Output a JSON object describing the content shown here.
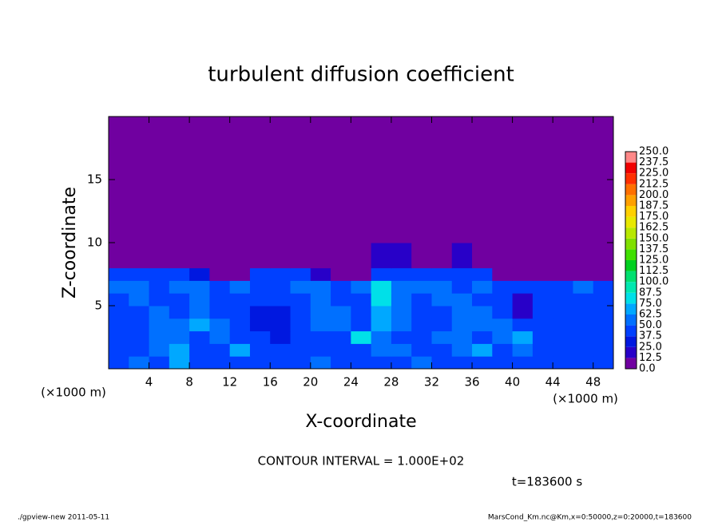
{
  "chart_data": {
    "type": "heatmap",
    "title": "turbulent diffusion coefficient",
    "xlabel": "X-coordinate",
    "ylabel": "Z-coordinate",
    "xlabel_unit": "(×1000 m)",
    "ylabel_unit": "(×1000 m)",
    "xlim": [
      0,
      50
    ],
    "ylim": [
      0,
      20
    ],
    "xticks": [
      4,
      8,
      12,
      16,
      20,
      24,
      28,
      32,
      36,
      40,
      44,
      48
    ],
    "yticks": [
      5,
      10,
      15
    ],
    "x": [
      0,
      2,
      4,
      6,
      8,
      10,
      12,
      14,
      16,
      18,
      20,
      22,
      24,
      26,
      28,
      30,
      32,
      34,
      36,
      38,
      40,
      42,
      44,
      46,
      48,
      50
    ],
    "y": [
      0,
      1,
      2,
      3,
      4,
      5,
      6,
      7,
      8,
      10,
      20
    ],
    "z": [
      [
        45,
        50,
        45,
        70,
        45,
        40,
        45,
        40,
        40,
        40,
        50,
        45,
        40,
        45,
        45,
        50,
        45,
        40,
        45,
        45,
        45,
        40,
        45,
        40,
        45
      ],
      [
        40,
        45,
        50,
        65,
        40,
        40,
        70,
        45,
        40,
        40,
        45,
        45,
        45,
        50,
        50,
        45,
        45,
        50,
        70,
        45,
        55,
        45,
        45,
        40,
        45
      ],
      [
        40,
        45,
        55,
        60,
        40,
        60,
        45,
        40,
        35,
        40,
        45,
        45,
        75,
        55,
        45,
        45,
        50,
        60,
        45,
        60,
        70,
        45,
        40,
        40,
        45
      ],
      [
        40,
        45,
        55,
        50,
        65,
        50,
        40,
        35,
        35,
        40,
        50,
        50,
        45,
        65,
        55,
        40,
        45,
        55,
        50,
        55,
        45,
        45,
        40,
        40,
        45
      ],
      [
        45,
        45,
        50,
        45,
        60,
        45,
        40,
        35,
        35,
        45,
        55,
        50,
        45,
        70,
        55,
        40,
        45,
        55,
        50,
        45,
        20,
        45,
        40,
        40,
        45
      ],
      [
        45,
        50,
        45,
        45,
        60,
        45,
        45,
        40,
        40,
        45,
        55,
        45,
        45,
        75,
        55,
        45,
        55,
        50,
        45,
        45,
        20,
        45,
        45,
        45,
        45
      ],
      [
        50,
        50,
        45,
        50,
        60,
        40,
        50,
        45,
        45,
        50,
        50,
        45,
        50,
        80,
        50,
        50,
        55,
        45,
        50,
        45,
        40,
        40,
        45,
        60,
        45
      ],
      [
        45,
        45,
        40,
        40,
        30,
        0,
        10,
        40,
        40,
        40,
        20,
        0,
        0,
        40,
        45,
        45,
        40,
        45,
        40,
        0,
        0,
        0,
        0,
        0,
        0
      ],
      [
        0,
        0,
        0,
        0,
        0,
        0,
        0,
        0,
        0,
        0,
        0,
        0,
        0,
        15,
        15,
        0,
        0,
        15,
        0,
        0,
        0,
        0,
        0,
        0,
        0
      ],
      [
        0,
        0,
        0,
        0,
        0,
        0,
        0,
        0,
        0,
        0,
        0,
        0,
        0,
        0,
        0,
        0,
        0,
        0,
        0,
        0,
        0,
        0,
        0,
        0,
        0
      ]
    ],
    "colorbar": {
      "levels": [
        {
          "value": 0,
          "label": "0.0"
        },
        {
          "value": 12.5,
          "label": "12.5"
        },
        {
          "value": 25,
          "label": "25.0"
        },
        {
          "value": 37.5,
          "label": "37.5"
        },
        {
          "value": 50,
          "label": "50.0"
        },
        {
          "value": 62.5,
          "label": "62.5"
        },
        {
          "value": 75,
          "label": "75.0"
        },
        {
          "value": 87.5,
          "label": "87.5"
        },
        {
          "value": 100,
          "label": "100.0"
        },
        {
          "value": 112.5,
          "label": "112.5"
        },
        {
          "value": 125,
          "label": "125.0"
        },
        {
          "value": 137.5,
          "label": "137.5"
        },
        {
          "value": 150,
          "label": "150.0"
        },
        {
          "value": 162.5,
          "label": "162.5"
        },
        {
          "value": 175,
          "label": "175.0"
        },
        {
          "value": 187.5,
          "label": "187.5"
        },
        {
          "value": 200,
          "label": "200.0"
        },
        {
          "value": 212.5,
          "label": "212.5"
        },
        {
          "value": 225,
          "label": "225.0"
        },
        {
          "value": 237.5,
          "label": "237.5"
        },
        {
          "value": 250,
          "label": "250.0"
        }
      ],
      "colors": [
        "#7000a0",
        "#2800c8",
        "#0018e0",
        "#0040ff",
        "#0070ff",
        "#00a8ff",
        "#00e0e8",
        "#00e8b0",
        "#00e070",
        "#00d020",
        "#40e000",
        "#80e000",
        "#b8e800",
        "#e8e800",
        "#ffd000",
        "#ffa000",
        "#ff7000",
        "#ff3000",
        "#f00000",
        "#ff8888"
      ]
    },
    "contour_note": "CONTOUR INTERVAL = 1.000E+02",
    "time_label": "t=183600 s",
    "footer_left": "./gpview-new  2011-05-11",
    "footer_right": "MarsCond_Km.nc@Km,x=0:50000,z=0:20000,t=183600"
  }
}
